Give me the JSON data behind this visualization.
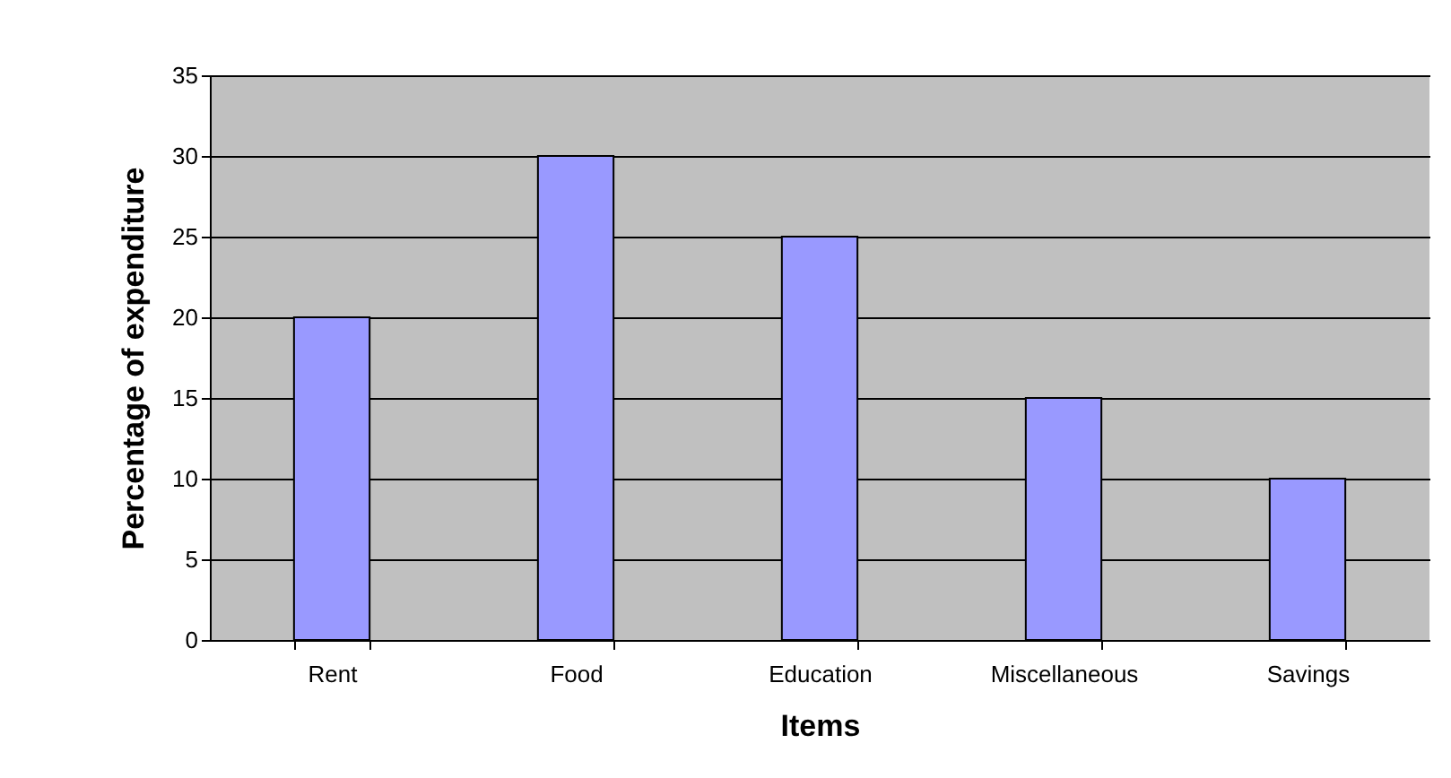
{
  "chart_data": {
    "type": "bar",
    "categories": [
      "Rent",
      "Food",
      "Education",
      "Miscellaneous",
      "Savings"
    ],
    "values": [
      20,
      30,
      25,
      15,
      10
    ],
    "color": "#9999ff",
    "xlabel": "Items",
    "ylabel": "Percentage of expenditure",
    "ylim": [
      0,
      35
    ],
    "yticks": [
      0,
      5,
      10,
      15,
      20,
      25,
      30,
      35
    ],
    "grid": "y"
  }
}
